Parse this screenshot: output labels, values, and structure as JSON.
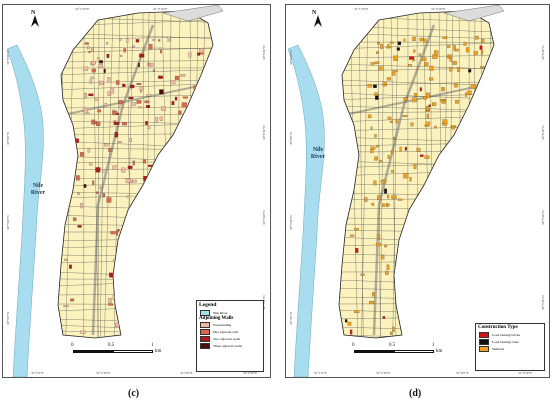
{
  "panel_c": {
    "caption": "(c)",
    "river_label": [
      "Nile",
      "River"
    ],
    "north": "N",
    "legend": {
      "title": "Legend",
      "river_item": "Nile River",
      "subtitle": "Adjoining Walls",
      "items": [
        {
          "label": "Freestanding",
          "color": "#f2b8a6"
        },
        {
          "label": "One adjacent wall",
          "color": "#d9684f"
        },
        {
          "label": "Two adjacent walls",
          "color": "#b01a1a"
        },
        {
          "label": "Three adjacent walls",
          "color": "#4a0c0c"
        }
      ],
      "river_color": "#a8dcef"
    },
    "scale": {
      "labels": [
        "0",
        "0.5",
        "1"
      ],
      "unit": "km"
    },
    "top_ticks": [
      "31°1'50\"E",
      "31°3'10\"E"
    ],
    "bottom_ticks": [
      "31°1'0\"E",
      "31°1'30\"E",
      "31°2'0\"E",
      "31°2'30\"E"
    ],
    "left_ticks": [
      "30°6'30\"N",
      "30°6'0\"N",
      "30°5'30\"N",
      "30°5'0\"N"
    ],
    "right_ticks": [
      "30°6'40\"N",
      "30°6'10\"N",
      "30°5'40\"N",
      "30°5'10\"N"
    ]
  },
  "panel_d": {
    "caption": "(d)",
    "river_label": [
      "Nile",
      "River"
    ],
    "north": "N",
    "legend": {
      "title": "Construction Type",
      "items": [
        {
          "label": "Load bearing bricks",
          "color": "#d21414"
        },
        {
          "label": "Load bearing stone",
          "color": "#111111"
        },
        {
          "label": "Skeleton",
          "color": "#f0a020"
        }
      ]
    },
    "scale": {
      "labels": [
        "0",
        "0.5",
        "1"
      ],
      "unit": "km"
    },
    "top_ticks": [
      "31°1'50\"E",
      "31°3'10\"E"
    ],
    "bottom_ticks": [
      "31°1'0\"E",
      "31°1'30\"E",
      "31°2'0\"E",
      "31°2'30\"E"
    ],
    "left_ticks": [
      "30°6'30\"N",
      "30°6'0\"N",
      "30°5'30\"N",
      "30°5'0\"N"
    ],
    "right_ticks": [
      "30°6'40\"N",
      "30°6'10\"N",
      "30°5'40\"N",
      "30°5'10\"N"
    ]
  },
  "colors": {
    "land": "#fbf2bd",
    "street": "#d4cfbf",
    "river": "#a8dcef",
    "outline": "#222222"
  }
}
